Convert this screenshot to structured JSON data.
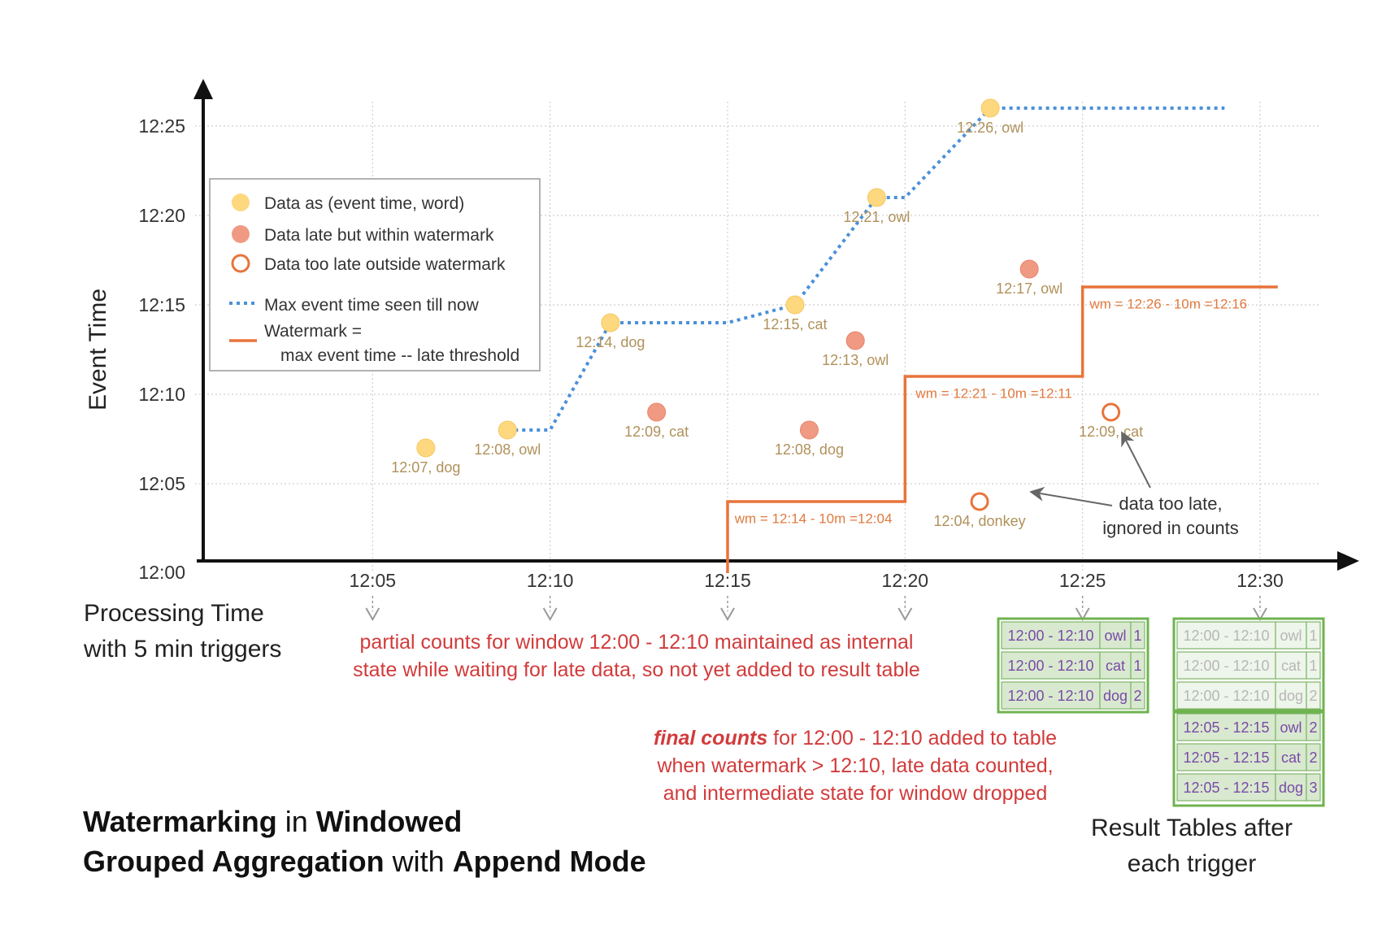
{
  "chart_data": {
    "type": "scatter",
    "ylabel": "Event Time",
    "xlabel_lines": [
      "Processing Time",
      "with 5 min triggers"
    ],
    "x_ticks": [
      "12:05",
      "12:10",
      "12:15",
      "12:20",
      "12:25",
      "12:30"
    ],
    "y_ticks": [
      "12:00",
      "12:05",
      "12:10",
      "12:15",
      "12:20",
      "12:25"
    ],
    "xlim": [
      0,
      30
    ],
    "ylim": [
      0,
      28
    ],
    "legend": {
      "placement": "top-left",
      "entries": [
        {
          "kind": "ontime",
          "label": "Data as (event time, word)"
        },
        {
          "kind": "late",
          "label": "Data late but within watermark"
        },
        {
          "kind": "toolate",
          "label": "Data too late outside watermark"
        },
        {
          "kind": "maxline",
          "label": "Max event time seen till now"
        },
        {
          "kind": "wmline",
          "label": "Watermark =",
          "label2": "max event time -- late threshold"
        }
      ]
    },
    "colors": {
      "ontime": "#fdd87e",
      "late": "#f09a84",
      "toolate": "#e8743b",
      "maxline": "#4a90d9",
      "watermark": "#e8743b",
      "grid": "#cfcfcf",
      "label": "#b0915a",
      "annotation": "#d23b3b"
    },
    "points": [
      {
        "x": 6.5,
        "y": 7,
        "label": "12:07, dog",
        "kind": "ontime"
      },
      {
        "x": 8.8,
        "y": 8,
        "label": "12:08, owl",
        "kind": "ontime"
      },
      {
        "x": 11.7,
        "y": 14,
        "label": "12:14, dog",
        "kind": "ontime"
      },
      {
        "x": 13,
        "y": 9,
        "label": "12:09, cat",
        "kind": "late"
      },
      {
        "x": 16.9,
        "y": 15,
        "label": "12:15, cat",
        "kind": "ontime"
      },
      {
        "x": 17.3,
        "y": 8,
        "label": "12:08, dog",
        "kind": "late"
      },
      {
        "x": 18.6,
        "y": 13,
        "label": "12:13, owl",
        "kind": "late"
      },
      {
        "x": 19.2,
        "y": 21,
        "label": "12:21, owl",
        "kind": "ontime"
      },
      {
        "x": 22.1,
        "y": 4,
        "label": "12:04, donkey",
        "kind": "toolate"
      },
      {
        "x": 22.4,
        "y": 26,
        "label": "12:26, owl",
        "kind": "ontime"
      },
      {
        "x": 23.5,
        "y": 17,
        "label": "12:17, owl",
        "kind": "late"
      },
      {
        "x": 25.8,
        "y": 9,
        "label": "12:09, cat",
        "kind": "toolate"
      }
    ],
    "max_event_time_line": [
      [
        8.8,
        8
      ],
      [
        10,
        8
      ],
      [
        11.7,
        14
      ],
      [
        15,
        14
      ],
      [
        16.9,
        15
      ],
      [
        19.2,
        21
      ],
      [
        20,
        21
      ],
      [
        22.4,
        26
      ],
      [
        29,
        26
      ]
    ],
    "watermark_line": [
      [
        15,
        0
      ],
      [
        15,
        4
      ],
      [
        20,
        4
      ],
      [
        20,
        11
      ],
      [
        25,
        11
      ],
      [
        25,
        16
      ],
      [
        30.5,
        16
      ]
    ],
    "watermark_labels": [
      {
        "text": "wm = 12:14 - 10m =12:04",
        "x": 15.2,
        "y": 2.8
      },
      {
        "text": "wm = 12:21 - 10m =12:11",
        "x": 20.3,
        "y": 9.8
      },
      {
        "text": "wm = 12:26 - 10m =12:16",
        "x": 25.2,
        "y": 14.8
      }
    ],
    "annotations": {
      "too_late": [
        "data too late,",
        "ignored in counts"
      ],
      "partial": [
        "partial counts for window 12:00 - 12:10 maintained as internal",
        "state while waiting for late data, so not yet added  to result table"
      ],
      "final_em": "final counts",
      "final_rest": " for 12:00 - 12:10 added to table",
      "final_lines": [
        "when watermark > 12:10, late data counted,",
        "and intermediate state for window dropped"
      ]
    },
    "title": {
      "line1": [
        {
          "t": "Watermarking",
          "b": true
        },
        {
          "t": " in ",
          "b": false
        },
        {
          "t": "Windowed",
          "b": true
        }
      ],
      "line2": [
        {
          "t": "Grouped Aggregation",
          "b": true
        },
        {
          "t": " with ",
          "b": false
        },
        {
          "t": "Append Mode",
          "b": true
        }
      ]
    },
    "result_tables": {
      "caption": [
        "Result Tables after",
        "each trigger"
      ],
      "tables": [
        {
          "at": "12:25",
          "rows": [
            {
              "window": "12:00 - 12:10",
              "word": "owl",
              "count": "1",
              "faded": false
            },
            {
              "window": "12:00 - 12:10",
              "word": "cat",
              "count": "1",
              "faded": false
            },
            {
              "window": "12:00 - 12:10",
              "word": "dog",
              "count": "2",
              "faded": false
            }
          ]
        },
        {
          "at": "12:30",
          "rows": [
            {
              "window": "12:00 - 12:10",
              "word": "owl",
              "count": "1",
              "faded": true
            },
            {
              "window": "12:00 - 12:10",
              "word": "cat",
              "count": "1",
              "faded": true
            },
            {
              "window": "12:00 - 12:10",
              "word": "dog",
              "count": "2",
              "faded": true
            },
            {
              "window": "12:05 - 12:15",
              "word": "owl",
              "count": "2",
              "faded": false
            },
            {
              "window": "12:05 - 12:15",
              "word": "cat",
              "count": "2",
              "faded": false
            },
            {
              "window": "12:05 - 12:15",
              "word": "dog",
              "count": "3",
              "faded": false
            }
          ]
        }
      ]
    }
  }
}
